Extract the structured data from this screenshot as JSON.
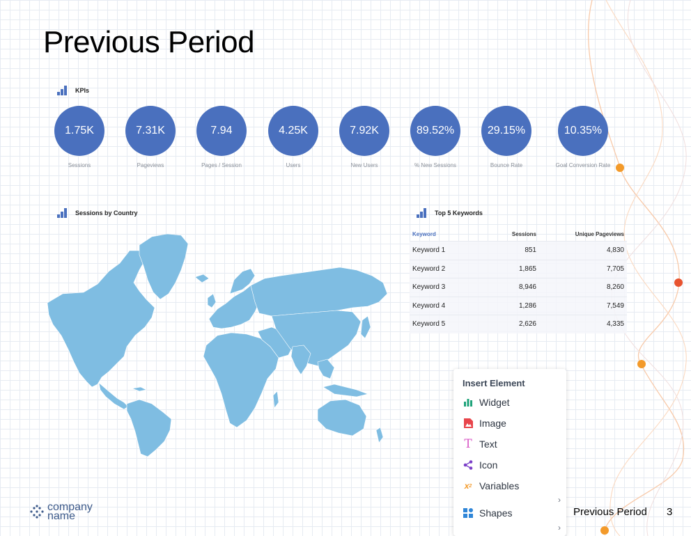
{
  "slide": {
    "title": "Previous Period",
    "footer_title": "Previous Period",
    "page_number": "3"
  },
  "kpi_section": {
    "heading": "KPIs",
    "items": [
      {
        "value": "1.75K",
        "label": "Sessions"
      },
      {
        "value": "7.31K",
        "label": "Pageviews"
      },
      {
        "value": "7.94",
        "label": "Pages / Session"
      },
      {
        "value": "4.25K",
        "label": "Users"
      },
      {
        "value": "7.92K",
        "label": "New Users"
      },
      {
        "value": "89.52%",
        "label": "% New Sessions"
      },
      {
        "value": "29.15%",
        "label": "Bounce Rate"
      },
      {
        "value": "10.35%",
        "label": "Goal Conversion Rate"
      }
    ]
  },
  "map_section": {
    "heading": "Sessions by Country"
  },
  "keywords_section": {
    "heading": "Top 5 Keywords",
    "columns": [
      "Keyword",
      "Sessions",
      "Unique Pageviews"
    ],
    "rows": [
      [
        "Keyword 1",
        "851",
        "4,830"
      ],
      [
        "Keyword 2",
        "1,865",
        "7,705"
      ],
      [
        "Keyword 3",
        "8,946",
        "8,260"
      ],
      [
        "Keyword 4",
        "1,286",
        "7,549"
      ],
      [
        "Keyword 5",
        "2,626",
        "4,335"
      ]
    ]
  },
  "insert_menu": {
    "title": "Insert Element",
    "items": [
      {
        "label": "Widget",
        "icon": "bar-chart-icon"
      },
      {
        "label": "Image",
        "icon": "image-icon"
      },
      {
        "label": "Text",
        "icon": "text-icon"
      },
      {
        "label": "Icon",
        "icon": "share-icon"
      },
      {
        "label": "Variables",
        "icon": "superscript-icon"
      },
      {
        "label": "Shapes",
        "icon": "shapes-icon"
      }
    ]
  },
  "logo": {
    "line1": "company",
    "line2": "name"
  },
  "colors": {
    "accent": "#4a70be",
    "map": "#7fbde2",
    "deco_orange": "#f39a2a",
    "deco_red": "#e8532f"
  }
}
